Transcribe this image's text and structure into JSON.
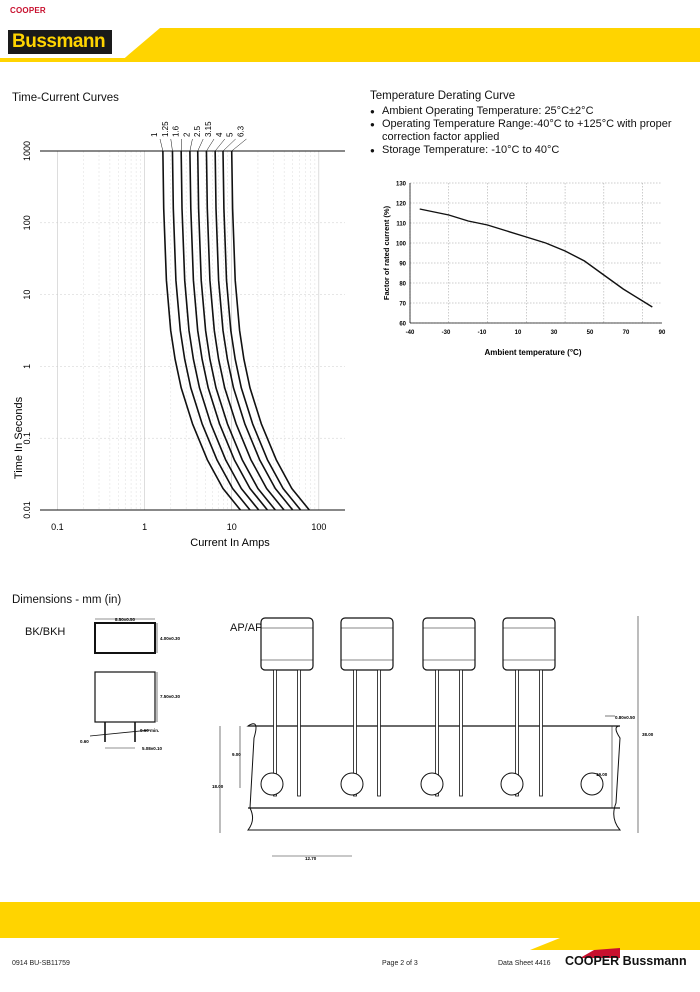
{
  "header": {
    "logo_small": "COOPER",
    "logo_brand": "Bussmann"
  },
  "time_current": {
    "title": "Time-Current Curves",
    "ylabel": "Time In Seconds",
    "xlabel": "Current In Amps",
    "y_ticks": [
      "1000",
      "100",
      "10",
      "1",
      "0.1",
      "0.01"
    ],
    "x_ticks": [
      "0.1",
      "1",
      "10",
      "100"
    ],
    "ratings": [
      "1",
      "1.25",
      "1.6",
      "2",
      "2.5",
      "3.15",
      "4",
      "5",
      "6.3"
    ]
  },
  "derating": {
    "title": "Temperature Derating Curve",
    "bullets": [
      "Ambient Operating Temperature: 25°C±2°C",
      "Operating Temperature Range:-40°C to +125°C with proper correction factor applied",
      "Storage Temperature: -10°C to 40°C"
    ]
  },
  "chart_data": {
    "type": "line",
    "xlabel": "Ambient temperature   (°C)",
    "ylabel": "Factor of rated current   (%)",
    "xlim": [
      -40,
      90
    ],
    "ylim": [
      60,
      130
    ],
    "x_ticks": [
      "-40",
      "-30",
      "-10",
      "10",
      "30",
      "50",
      "70",
      "90"
    ],
    "y_ticks": [
      "130",
      "120",
      "110",
      "100",
      "90",
      "80",
      "70",
      "60"
    ],
    "grid": true,
    "series": [
      {
        "x": [
          -35,
          -20,
          -10,
          0,
          10,
          20,
          30,
          40,
          50,
          60,
          70,
          80,
          85
        ],
        "y": [
          117,
          114,
          111,
          109,
          106,
          103,
          100,
          96,
          91,
          84,
          77,
          71,
          68
        ]
      }
    ]
  },
  "dimensions": {
    "title": "Dimensions - mm (in)",
    "bk_label": "BK/BKH",
    "ap_label": "AP/APH",
    "bk_dims": [
      "8.50±0.50",
      "4.00±0.30",
      "7.50±0.30",
      "0.60 min.",
      "0.60",
      "5.08±0.10"
    ],
    "ap_dims": [
      "0.80±0.50",
      "9.00",
      "18.00",
      "19.00",
      "38.00",
      "12.70"
    ]
  },
  "footer": {
    "code": "0914   BU-SB11759",
    "page": "Page 2 of 3",
    "sheet": "Data Sheet 4416",
    "logo_cooper": "COOPER",
    "logo_bussmann": "Bussmann"
  },
  "colors": {
    "brand_yellow": "#ffd400",
    "brand_red": "#c8102e"
  }
}
